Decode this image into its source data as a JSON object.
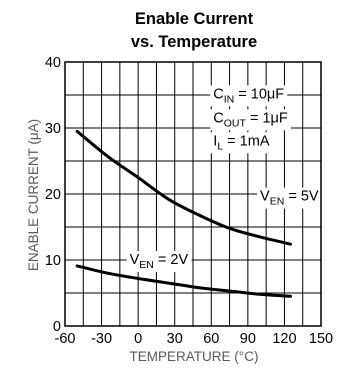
{
  "chart_data": {
    "type": "line",
    "title": "Enable Current",
    "subtitle": "vs. Temperature",
    "xlabel": "TEMPERATURE (°C)",
    "ylabel": "ENABLE CURRENT (μA)",
    "xlim": [
      -60,
      150
    ],
    "ylim": [
      0,
      40
    ],
    "grid": true,
    "x_ticks": [
      -60,
      -30,
      0,
      30,
      60,
      90,
      120,
      150
    ],
    "y_ticks": [
      0,
      10,
      20,
      30,
      40
    ],
    "x_tick_labels": [
      "-60",
      "-30",
      "0",
      "30",
      "60",
      "90",
      "120",
      "150"
    ],
    "y_tick_labels": [
      "0",
      "10",
      "20",
      "30",
      "40"
    ],
    "conditions": {
      "cin": {
        "main": "C",
        "sub": "IN",
        "rest": " = 10μF"
      },
      "cout": {
        "main": "C",
        "sub": "OUT",
        "rest": " = 1μF"
      },
      "il": {
        "main": "I",
        "sub": "L",
        "rest": " = 1mA"
      }
    },
    "series": [
      {
        "label": {
          "main": "V",
          "sub": "EN",
          "rest": " = 5V"
        },
        "x": [
          -50,
          -25,
          0,
          25,
          50,
          75,
          100,
          125
        ],
        "y": [
          29.5,
          25.7,
          22.5,
          19.2,
          16.8,
          14.8,
          13.5,
          12.4
        ],
        "label_pos": {
          "x": 100,
          "y": 19
        }
      },
      {
        "label": {
          "main": "V",
          "sub": "EN",
          "rest": " = 2V"
        },
        "x": [
          -50,
          -25,
          0,
          25,
          50,
          75,
          100,
          125
        ],
        "y": [
          9.1,
          8.0,
          7.2,
          6.5,
          5.8,
          5.3,
          4.8,
          4.5
        ],
        "label_pos": {
          "x": -7,
          "y": 9.4
        }
      }
    ]
  }
}
